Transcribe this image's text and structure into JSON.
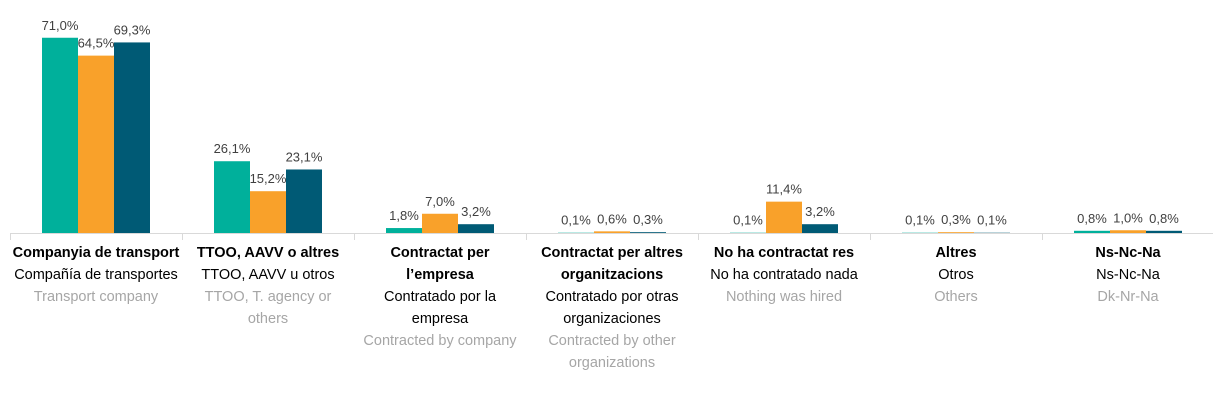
{
  "chart_data": {
    "type": "bar",
    "categories": [
      "Companyia de transport",
      "TTOO, AAVV o altres",
      "Contractat per l’empresa",
      "Contractat per altres organitzacions",
      "No ha contractat res",
      "Altres",
      "Ns-Nc-Na"
    ],
    "categories_es": [
      "Compañía de transportes",
      "TTOO, AAVV u otros",
      "Contratado por la empresa",
      "Contratado por otras organizaciones",
      "No ha contratado nada",
      "Otros",
      "Ns-Nc-Na"
    ],
    "categories_en": [
      "Transport company",
      "TTOO, T. agency or others",
      "Contracted by company",
      "Contracted by other organizations",
      "Nothing was hired",
      "Others",
      "Dk-Nr-Na"
    ],
    "series": [
      {
        "color": "#00b09b",
        "values": [
          71.0,
          26.1,
          1.8,
          0.1,
          0.1,
          0.1,
          0.8
        ],
        "value_labels": [
          "71,0%",
          "26,1%",
          "1,8%",
          "0,1%",
          "0,1%",
          "0,1%",
          "0,8%"
        ]
      },
      {
        "color": "#f9a12a",
        "values": [
          64.5,
          15.2,
          7.0,
          0.6,
          11.4,
          0.3,
          1.0
        ],
        "value_labels": [
          "64,5%",
          "15,2%",
          "7,0%",
          "0,6%",
          "11,4%",
          "0,3%",
          "1,0%"
        ]
      },
      {
        "color": "#005a75",
        "values": [
          69.3,
          23.1,
          3.2,
          0.3,
          3.2,
          0.1,
          0.8
        ],
        "value_labels": [
          "69,3%",
          "23,1%",
          "3,2%",
          "0,3%",
          "3,2%",
          "0,1%",
          "0,8%"
        ]
      }
    ]
  }
}
